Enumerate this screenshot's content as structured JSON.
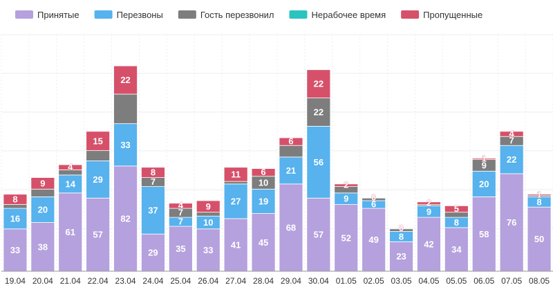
{
  "chart_data": {
    "type": "bar",
    "stacked": true,
    "categories": [
      "19.04",
      "20.04",
      "21.04",
      "22.04",
      "23.04",
      "24.04",
      "25.04",
      "26.04",
      "27.04",
      "28.04",
      "29.04",
      "30.04",
      "01.05",
      "02.05",
      "03.05",
      "04.05",
      "05.05",
      "06.05",
      "07.05",
      "08.05"
    ],
    "series": [
      {
        "name": "Принятые",
        "color": "#b5a1dd",
        "values": [
          33,
          38,
          61,
          57,
          82,
          29,
          35,
          33,
          41,
          45,
          68,
          57,
          52,
          49,
          23,
          42,
          34,
          58,
          76,
          50
        ]
      },
      {
        "name": "Перезвоны",
        "color": "#57b2ee",
        "values": [
          16,
          20,
          14,
          29,
          33,
          37,
          7,
          10,
          27,
          19,
          21,
          56,
          9,
          6,
          8,
          9,
          8,
          20,
          22,
          8
        ]
      },
      {
        "name": "Гость перезвонил",
        "color": "#7d7d7d",
        "values": [
          3,
          6,
          4,
          8,
          23,
          7,
          7,
          3,
          2,
          10,
          9,
          22,
          5,
          2,
          2,
          1,
          4,
          9,
          7,
          1
        ]
      },
      {
        "name": "Нерабочее время",
        "color": "#2ac4c0",
        "values": [
          0,
          0,
          0,
          0,
          0,
          0,
          0,
          0,
          0,
          0,
          0,
          0,
          0,
          0,
          0,
          0,
          0,
          0,
          0,
          0
        ]
      },
      {
        "name": "Пропущенные",
        "color": "#d6506a",
        "values": [
          8,
          9,
          4,
          15,
          22,
          8,
          4,
          9,
          11,
          6,
          6,
          22,
          2,
          0,
          0,
          2,
          5,
          1,
          4,
          1
        ]
      }
    ],
    "data_labels": [
      [
        "33",
        "38",
        "61",
        "57",
        "82",
        "29",
        "35",
        "33",
        "41",
        "45",
        "68",
        "57",
        "52",
        "49",
        "23",
        "42",
        "34",
        "58",
        "76",
        "50"
      ],
      [
        "16",
        "20",
        "14",
        "29",
        "33",
        "37",
        "7",
        "10",
        "27",
        "19",
        "21",
        "56",
        "9",
        "6",
        "8",
        "9",
        "8",
        "20",
        "22",
        "8"
      ],
      [
        "",
        "",
        "",
        "",
        "",
        "7",
        "7",
        "",
        "",
        "10",
        "",
        "22",
        "",
        "",
        "",
        "",
        "",
        "9",
        "7",
        ""
      ],
      [
        "",
        "",
        "",
        "",
        "",
        "",
        "",
        "",
        "",
        "",
        "",
        "",
        "",
        "",
        "",
        "",
        "",
        "",
        "",
        ""
      ],
      [
        "8",
        "9",
        "4",
        "15",
        "22",
        "8",
        "4",
        "9",
        "11",
        "6",
        "6",
        "22",
        "2",
        "0",
        "0",
        "2",
        "5",
        "1",
        "4",
        "1"
      ]
    ],
    "title": "",
    "xlabel": "",
    "ylabel": "",
    "ylim": [
      0,
      155
    ],
    "grid": true,
    "legend": "top-left"
  }
}
